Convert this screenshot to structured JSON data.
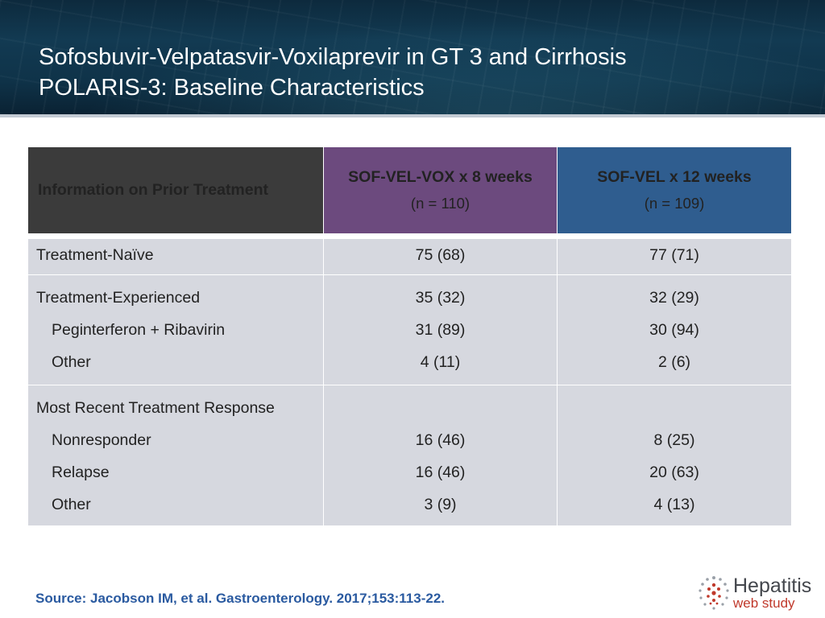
{
  "header": {
    "title_line1": "Sofosbuvir-Velpatasvir-Voxilaprevir in GT 3 and Cirrhosis",
    "title_line2": "POLARIS-3: Baseline Characteristics"
  },
  "table": {
    "col1_header": "Information on Prior Treatment",
    "col2_header": "SOF-VEL-VOX x 8 weeks",
    "col2_sub": "(n = 110)",
    "col3_header": "SOF-VEL x 12 weeks",
    "col3_sub": "(n = 109)",
    "rows": [
      {
        "label": "Treatment-Naïve",
        "vox": "75 (68)",
        "vel": "77 (71)"
      },
      {
        "label": "Treatment-Experienced",
        "vox": "35 (32)",
        "vel": "32 (29)"
      },
      {
        "label": "Peginterferon + Ribavirin",
        "vox": "31 (89)",
        "vel": "30 (94)"
      },
      {
        "label": "Other",
        "vox": "4 (11)",
        "vel": "2 (6)"
      },
      {
        "label": "Most Recent Treatment Response",
        "vox": "",
        "vel": ""
      },
      {
        "label": "Nonresponder",
        "vox": "16 (46)",
        "vel": "8 (25)"
      },
      {
        "label": "Relapse",
        "vox": "16 (46)",
        "vel": "20 (63)"
      },
      {
        "label": "Other",
        "vox": "3 (9)",
        "vel": "4 (13)"
      }
    ]
  },
  "footer": {
    "source": "Source: Jacobson IM, et al. Gastroenterology. 2017;153:113-22.",
    "logo_line1": "Hepatitis",
    "logo_line2": "web study"
  },
  "colors": {
    "banner": "#123a52",
    "vox_header": "#6c4a7e",
    "vel_header": "#2f5d8f",
    "label_header": "#3b3b3b",
    "row_bg": "#d6d8df",
    "source_text": "#2a5aa0",
    "logo_accent": "#c0392b"
  }
}
